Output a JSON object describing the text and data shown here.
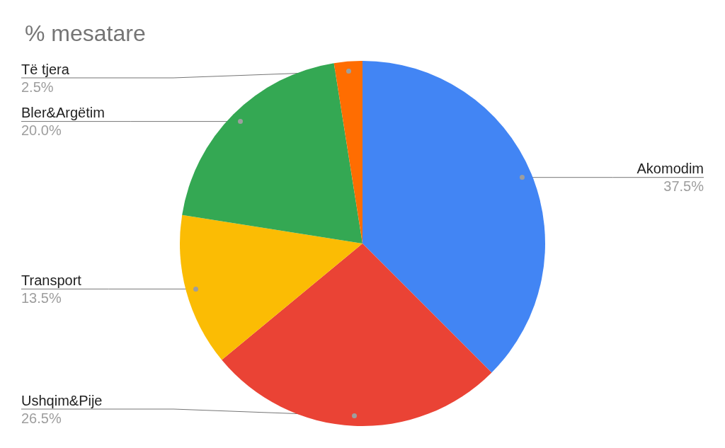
{
  "chart_data": {
    "type": "pie",
    "title": "% mesatare",
    "categories": [
      "Akomodim",
      "Ushqim&Pije",
      "Transport",
      "Bler&Argëtim",
      "Të tjera"
    ],
    "values": [
      37.5,
      26.5,
      13.5,
      20.0,
      2.5
    ],
    "colors": [
      "#4285f4",
      "#ea4335",
      "#fbbc04",
      "#34a853",
      "#ff6d01"
    ],
    "value_labels": [
      "37.5%",
      "26.5%",
      "13.5%",
      "20.0%",
      "2.5%"
    ]
  }
}
